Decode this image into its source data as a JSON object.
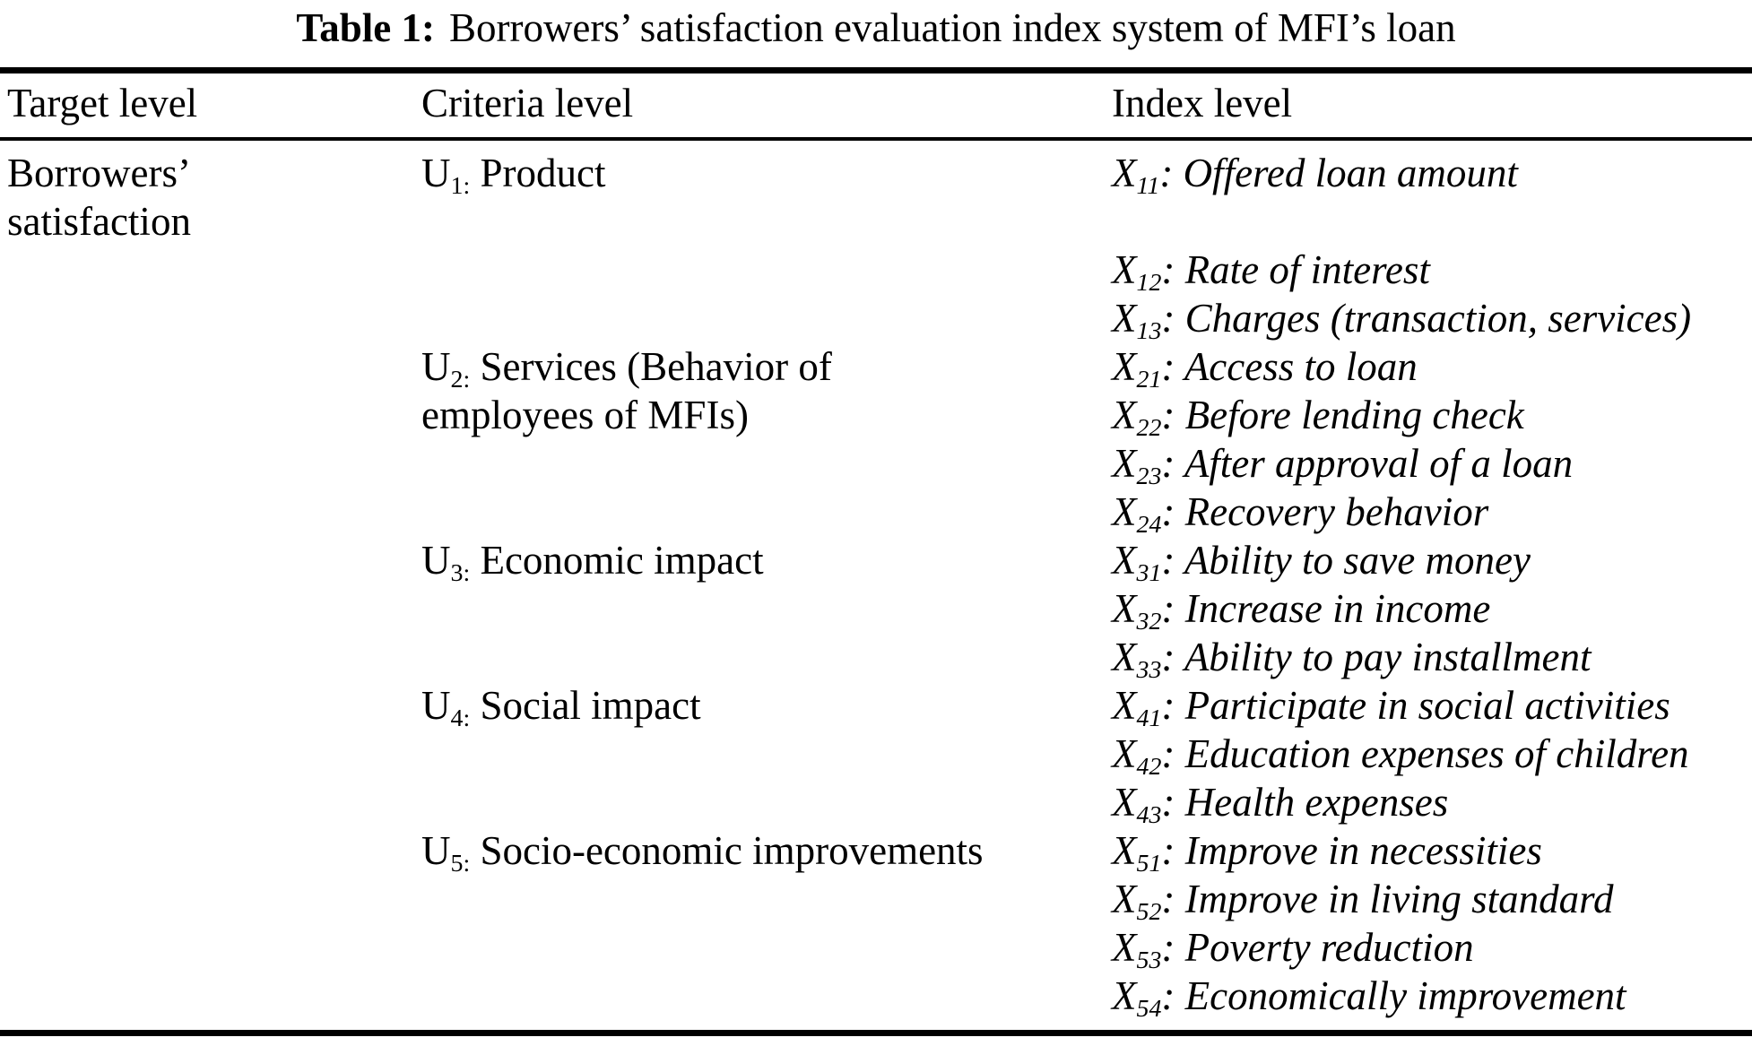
{
  "colors": {
    "text": "#000000",
    "background": "#ffffff",
    "rule": "#000000"
  },
  "title": {
    "label": "Table 1:",
    "text": "Borrowers’ satisfaction evaluation index system of MFI’s loan"
  },
  "columns": [
    "Target level",
    "Criteria level",
    "Index level"
  ],
  "rows": [
    {
      "target": "Borrowers’",
      "criteria": {
        "sym": "U",
        "sub": "1:",
        "rest": " Product"
      },
      "index": {
        "sym": "X",
        "sub": "11",
        "rest": ": Offered loan amount"
      }
    },
    {
      "target": "satisfaction"
    },
    {
      "index": {
        "sym": "X",
        "sub": "12",
        "rest": ": Rate of interest"
      }
    },
    {
      "index": {
        "sym": "X",
        "sub": "13",
        "rest": ": Charges (transaction, services)"
      }
    },
    {
      "criteria": {
        "sym": "U",
        "sub": "2:",
        "rest": " Services (Behavior of"
      },
      "index": {
        "sym": "X",
        "sub": "21",
        "rest": ": Access to loan"
      }
    },
    {
      "criteria": {
        "rest": "employees of MFIs)"
      },
      "index": {
        "sym": "X",
        "sub": "22",
        "rest": ": Before lending check"
      }
    },
    {
      "index": {
        "sym": "X",
        "sub": "23",
        "rest": ": After approval of a loan"
      }
    },
    {
      "index": {
        "sym": "X",
        "sub": "24",
        "rest": ": Recovery behavior"
      }
    },
    {
      "criteria": {
        "sym": "U",
        "sub": "3:",
        "rest": " Economic impact"
      },
      "index": {
        "sym": "X",
        "sub": "31",
        "rest": ": Ability to save money"
      }
    },
    {
      "index": {
        "sym": "X",
        "sub": "32",
        "rest": ": Increase in income"
      }
    },
    {
      "index": {
        "sym": "X",
        "sub": "33",
        "rest": ": Ability to pay installment"
      }
    },
    {
      "criteria": {
        "sym": "U",
        "sub": "4:",
        "rest": " Social impact"
      },
      "index": {
        "sym": "X",
        "sub": "41",
        "rest": ": Participate in social activities"
      }
    },
    {
      "index": {
        "sym": "X",
        "sub": "42",
        "rest": ": Education expenses of children"
      }
    },
    {
      "index": {
        "sym": "X",
        "sub": "43",
        "rest": ": Health expenses"
      }
    },
    {
      "criteria": {
        "sym": "U",
        "sub": "5:",
        "rest": " Socio-economic improvements"
      },
      "index": {
        "sym": "X",
        "sub": "51",
        "rest": ": Improve in necessities"
      }
    },
    {
      "index": {
        "sym": "X",
        "sub": "52",
        "rest": ": Improve in living standard"
      }
    },
    {
      "index": {
        "sym": "X",
        "sub": "53",
        "rest": ": Poverty reduction"
      }
    },
    {
      "index": {
        "sym": "X",
        "sub": "54",
        "rest": ": Economically improvement"
      }
    }
  ]
}
